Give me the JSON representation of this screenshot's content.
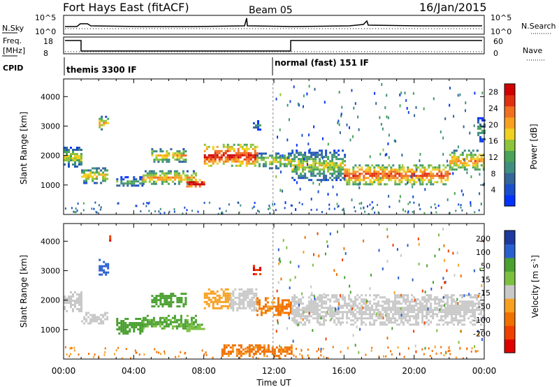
{
  "header": {
    "station": "Fort Hays East (fitACF)",
    "beam": "Beam 05",
    "date": "16/Jan/2015"
  },
  "top_panel": {
    "left_labels": [
      "N.Sky",
      "Freq.",
      "[MHz]",
      "CPID"
    ],
    "right_labels": [
      "N.Search",
      "Nave"
    ],
    "noise_left_ticks": [
      "10^5",
      "10^0"
    ],
    "noise_right_ticks": [
      "10^5",
      "10^0"
    ],
    "freq_ticks": [
      "18",
      "8"
    ],
    "nave_ticks": [
      "60",
      "0"
    ],
    "cpid_segments": [
      {
        "label": "themis 3300 IF",
        "start_ut": 0.0
      },
      {
        "label": "normal (fast) 151 IF",
        "start_ut": 11.95
      }
    ]
  },
  "colors": {
    "power_scale": [
      "#0033ff",
      "#1a4fcc",
      "#336699",
      "#3f8f7f",
      "#4aa35a",
      "#8cc43a",
      "#f0d020",
      "#f8a020",
      "#f07020",
      "#e03010",
      "#d00000"
    ],
    "velocity_scale": [
      "#e00000",
      "#f04000",
      "#f07000",
      "#f8a020",
      "#c8c8c8",
      "#7cc040",
      "#4aa030",
      "#2a5fd0",
      "#1e3aa0"
    ]
  },
  "chart_data": [
    {
      "type": "heatmap",
      "title": "Power",
      "xlabel": "Time UT",
      "ylabel": "Slant Range [km]",
      "xticks": [
        "00:00",
        "04:00",
        "08:00",
        "12:00",
        "16:00",
        "20:00",
        "00:00"
      ],
      "xlim_hours": [
        0,
        24
      ],
      "ylim": [
        0,
        4600
      ],
      "yticks": [
        "1000",
        "2000",
        "3000",
        "4000"
      ],
      "colorbar_label": "Power [dB]",
      "colorbar_ticks": [
        "4",
        "8",
        "12",
        "16",
        "20",
        "24",
        "28"
      ],
      "colorbar_range": [
        0,
        30
      ],
      "regions": [
        {
          "t": [
            0.0,
            1.0
          ],
          "r": [
            1650,
            2300
          ],
          "v": 12
        },
        {
          "t": [
            1.0,
            2.5
          ],
          "r": [
            1100,
            1600
          ],
          "v": 14
        },
        {
          "t": [
            2.0,
            2.5
          ],
          "r": [
            2900,
            3350
          ],
          "v": 15
        },
        {
          "t": [
            3.0,
            4.5
          ],
          "r": [
            950,
            1300
          ],
          "v": 8
        },
        {
          "t": [
            4.5,
            7.5
          ],
          "r": [
            1050,
            1500
          ],
          "v": 16
        },
        {
          "t": [
            5.0,
            7.0
          ],
          "r": [
            1800,
            2250
          ],
          "v": 15
        },
        {
          "t": [
            7.0,
            8.0
          ],
          "r": [
            950,
            1200
          ],
          "v": 26
        },
        {
          "t": [
            8.0,
            11.0
          ],
          "r": [
            1650,
            2400
          ],
          "v": 22
        },
        {
          "t": [
            10.8,
            11.2
          ],
          "r": [
            2900,
            3200
          ],
          "v": 6
        },
        {
          "t": [
            11.0,
            13.0
          ],
          "r": [
            1600,
            2100
          ],
          "v": 13
        },
        {
          "t": [
            13.0,
            16.0
          ],
          "r": [
            1200,
            2200
          ],
          "v": 12
        },
        {
          "t": [
            16.0,
            22.0
          ],
          "r": [
            1050,
            1700
          ],
          "v": 20
        },
        {
          "t": [
            22.0,
            24.0
          ],
          "r": [
            1500,
            2200
          ],
          "v": 16
        },
        {
          "t": [
            23.6,
            24.0
          ],
          "r": [
            2500,
            3300
          ],
          "v": 8
        }
      ]
    },
    {
      "type": "heatmap",
      "title": "Velocity",
      "xlabel": "Time UT",
      "ylabel": "Slant Range [km]",
      "xticks": [
        "00:00",
        "04:00",
        "08:00",
        "12:00",
        "16:00",
        "20:00",
        "00:00"
      ],
      "xlim_hours": [
        0,
        24
      ],
      "ylim": [
        0,
        4600
      ],
      "yticks": [
        "1000",
        "2000",
        "3000",
        "4000"
      ],
      "colorbar_label": "Velocity [m s^-1]",
      "colorbar_ticks": [
        "200",
        "100",
        "50",
        "15",
        "-15",
        "-50",
        "-100",
        "-200"
      ],
      "regions": [
        {
          "t": [
            0.0,
            1.0
          ],
          "r": [
            1650,
            2300
          ],
          "v": 0
        },
        {
          "t": [
            1.0,
            2.5
          ],
          "r": [
            1200,
            1600
          ],
          "v": 0
        },
        {
          "t": [
            2.0,
            2.5
          ],
          "r": [
            2900,
            3400
          ],
          "v": 180
        },
        {
          "t": [
            2.6,
            2.7
          ],
          "r": [
            4000,
            4200
          ],
          "v": -200
        },
        {
          "t": [
            3.0,
            4.5
          ],
          "r": [
            900,
            1400
          ],
          "v": 70
        },
        {
          "t": [
            4.5,
            7.5
          ],
          "r": [
            1050,
            1500
          ],
          "v": 60
        },
        {
          "t": [
            5.0,
            7.0
          ],
          "r": [
            1800,
            2250
          ],
          "v": 70
        },
        {
          "t": [
            7.0,
            8.0
          ],
          "r": [
            950,
            1200
          ],
          "v": 40
        },
        {
          "t": [
            8.0,
            9.5
          ],
          "r": [
            1700,
            2400
          ],
          "v": -30
        },
        {
          "t": [
            9.5,
            11.0
          ],
          "r": [
            1650,
            2400
          ],
          "v": 0
        },
        {
          "t": [
            10.8,
            11.2
          ],
          "r": [
            2900,
            3200
          ],
          "v": -200
        },
        {
          "t": [
            11.0,
            13.0
          ],
          "r": [
            1500,
            2100
          ],
          "v": -60
        },
        {
          "t": [
            13.0,
            24.0
          ],
          "r": [
            1200,
            2200
          ],
          "v": 0
        },
        {
          "t": [
            9.0,
            13.0
          ],
          "r": [
            100,
            500
          ],
          "v": -60
        }
      ]
    }
  ]
}
